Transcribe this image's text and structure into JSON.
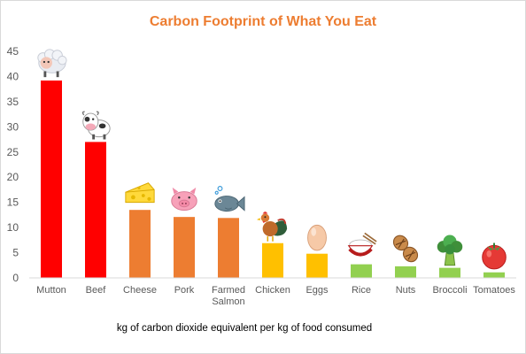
{
  "chart_data": {
    "type": "bar",
    "title": "Carbon Footprint of What You Eat",
    "xlabel": "kg of carbon dioxide equivalent per kg of food consumed",
    "ylabel": "",
    "ylim": [
      0,
      45
    ],
    "yticks": [
      "0",
      "5",
      "10",
      "15",
      "20",
      "25",
      "30",
      "35",
      "40",
      "45"
    ],
    "grid": false,
    "categories": [
      "Mutton",
      "Beef",
      "Cheese",
      "Pork",
      "Farmed Salmon",
      "Chicken",
      "Eggs",
      "Rice",
      "Nuts",
      "Broccoli",
      "Tomatoes"
    ],
    "category_lines": [
      [
        "Mutton"
      ],
      [
        "Beef"
      ],
      [
        "Cheese"
      ],
      [
        "Pork"
      ],
      [
        "Farmed",
        "Salmon"
      ],
      [
        "Chicken"
      ],
      [
        "Eggs"
      ],
      [
        "Rice"
      ],
      [
        "Nuts"
      ],
      [
        "Broccoli"
      ],
      [
        "Tomatoes"
      ]
    ],
    "values": [
      39.2,
      27.0,
      13.5,
      12.1,
      11.9,
      6.9,
      4.8,
      2.7,
      2.3,
      2.0,
      1.1
    ],
    "bar_colors": [
      "#ff0000",
      "#ff0000",
      "#ed7d31",
      "#ed7d31",
      "#ed7d31",
      "#ffc000",
      "#ffc000",
      "#92d050",
      "#92d050",
      "#92d050",
      "#92d050"
    ],
    "icons": [
      "sheep-icon",
      "cow-icon",
      "cheese-icon",
      "pig-icon",
      "fish-icon",
      "rooster-icon",
      "egg-icon",
      "rice-bowl-icon",
      "peanut-icon",
      "broccoli-icon",
      "tomato-icon"
    ]
  },
  "colors": {
    "title": "#ed7d31",
    "axis_text": "#595959",
    "axis_line": "#d9d9d9"
  }
}
